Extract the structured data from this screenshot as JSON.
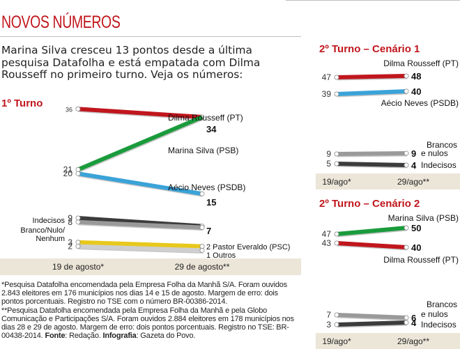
{
  "header": {
    "title": "NOVOS NÚMEROS",
    "intro": "Marina Silva cresceu 13 pontos desde a última pesquisa Datafolha e está empatada com Dilma Rousseff no primeiro turno. Veja os números:"
  },
  "chart_data": [
    {
      "type": "line",
      "title": "1º Turno",
      "x": [
        "19 de agosto*",
        "29 de agosto**"
      ],
      "series": [
        {
          "name": "Dilma Rousseff (PT)",
          "values": [
            36,
            34
          ],
          "color": "#c0161d"
        },
        {
          "name": "Marina Silva (PSB)",
          "values": [
            21,
            34
          ],
          "color": "#1a9b3c"
        },
        {
          "name": "Aécio Neves (PSDB)",
          "values": [
            20,
            15
          ],
          "color": "#3aa3d8"
        },
        {
          "name": "Indecisos",
          "values": [
            9,
            7
          ],
          "color": "#3c3c3c"
        },
        {
          "name": "Branco/Nulo/ Nenhum",
          "values": [
            8,
            7
          ],
          "color": "#9a9a9a"
        },
        {
          "name": "Pastor Everaldo (PSC)",
          "values": [
            3,
            2
          ],
          "color": "#e8c81c"
        },
        {
          "name": "Outros",
          "values": [
            2,
            1
          ],
          "color": "#cfcfcf"
        }
      ],
      "end_labels": [
        "Dilma Rousseff (PT)",
        "Marina Silva (PSB)",
        "Aécio Neves (PSDB)",
        "2 Pastor Everaldo (PSC)",
        "1 Outros"
      ],
      "left_labels": [
        "Indecisos",
        "Branco/Nulo/",
        "Nenhum"
      ]
    },
    {
      "type": "line",
      "title": "2º Turno – Cenário 1",
      "x": [
        "19/ago*",
        "29/ago**"
      ],
      "series": [
        {
          "name": "Dilma Rousseff (PT)",
          "values": [
            47,
            48
          ],
          "color": "#c0161d"
        },
        {
          "name": "Aécio Neves (PSDB)",
          "values": [
            39,
            40
          ],
          "color": "#3aa3d8"
        },
        {
          "name": "Brancos e nulos",
          "values": [
            9,
            9
          ],
          "color": "#9a9a9a"
        },
        {
          "name": "Indecisos",
          "values": [
            5,
            4
          ],
          "color": "#3c3c3c"
        }
      ],
      "end_labels": [
        "Brancos",
        "e nulos",
        "Indecisos"
      ]
    },
    {
      "type": "line",
      "title": "2º Turno – Cenário 2",
      "x": [
        "19/ago*",
        "29/ago**"
      ],
      "series": [
        {
          "name": "Marina Silva (PSB)",
          "values": [
            47,
            50
          ],
          "color": "#1a9b3c"
        },
        {
          "name": "Dilma Rousseff (PT)",
          "values": [
            43,
            40
          ],
          "color": "#c0161d"
        },
        {
          "name": "Brancos e nulos",
          "values": [
            7,
            6
          ],
          "color": "#9a9a9a"
        },
        {
          "name": "Indecisos",
          "values": [
            3,
            4
          ],
          "color": "#3c3c3c"
        }
      ],
      "end_labels": [
        "Brancos",
        "e nulos",
        "Indecisos"
      ]
    }
  ],
  "footnote": {
    "line1": "*Pesquisa Datafolha encomendada pela Empresa Folha da Manhã S/A. Foram ouvidos 2.843 eleitores em 176 municípios nos dias 14 e 15 de agosto. Margem de erro: dois pontos porcentuais. Registro no TSE com o número BR-00386-2014.",
    "line2": "**Pesquisa Datafolha encomendada pela Empresa Folha da Manhã e pela Globo Comunicação e Participações S/A. Foram ouvidos 2.884 eleitores em 178 municípios nos dias 28 e 29 de agosto. Margem de erro: dois pontos porcentuais. Registro no TSE: BR-00438-2014.",
    "fonte_label": "Fonte",
    "fonte_value": ": Redação.",
    "infografia_label": "Infografia",
    "infografia_value": ": Gazeta do Povo."
  }
}
